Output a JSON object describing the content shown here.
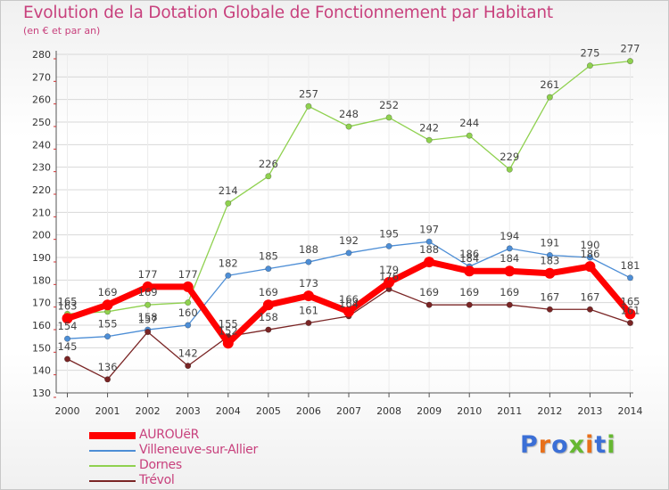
{
  "title": "Evolution de la Dotation Globale de Fonctionnement par Habitant",
  "subtitle": "(en € et par an)",
  "logo": {
    "text": "Proxiti",
    "colors": [
      "#3b6fd6",
      "#e8701a",
      "#3b6fd6",
      "#66b832",
      "#e8701a",
      "#3b6fd6",
      "#66b832"
    ]
  },
  "chart_data": {
    "type": "line",
    "x": [
      2000,
      2001,
      2002,
      2003,
      2004,
      2005,
      2006,
      2007,
      2008,
      2009,
      2010,
      2011,
      2012,
      2013,
      2014
    ],
    "x_tick_labels": [
      "2000",
      "2001",
      "2002",
      "2003",
      "2004",
      "2005",
      "2006",
      "2007",
      "2008",
      "2009",
      "2010",
      "2011",
      "2012",
      "2013",
      "2014"
    ],
    "ylim": [
      130,
      280
    ],
    "y_ticks": [
      130,
      140,
      150,
      160,
      170,
      180,
      190,
      200,
      210,
      220,
      230,
      240,
      250,
      260,
      270,
      280
    ],
    "y_tick_labels": [
      "130",
      "140",
      "150",
      "160",
      "170",
      "180",
      "190",
      "200",
      "210",
      "220",
      "230",
      "240",
      "250",
      "260",
      "270",
      "280"
    ],
    "grid": "horizontal",
    "legend_position": "bottom-left",
    "series": [
      {
        "name": "Dornes",
        "color": "#8fd14f",
        "width": "thin",
        "values": [
          165,
          166,
          169,
          170,
          214,
          226,
          257,
          248,
          252,
          242,
          244,
          229,
          261,
          275,
          277
        ],
        "labels": [
          "165",
          "",
          "169",
          "",
          "214",
          "226",
          "257",
          "248",
          "252",
          "242",
          "244",
          "229",
          "261",
          "275",
          "277"
        ]
      },
      {
        "name": "Villeneuve-sur-Allier",
        "color": "#4d8ed6",
        "width": "thin",
        "values": [
          154,
          155,
          158,
          160,
          182,
          185,
          188,
          192,
          195,
          197,
          186,
          194,
          191,
          190,
          181
        ],
        "labels": [
          "154",
          "155",
          "158",
          "160",
          "182",
          "185",
          "188",
          "192",
          "195",
          "197",
          "186",
          "194",
          "191",
          "190",
          "181"
        ]
      },
      {
        "name": "Trévol",
        "color": "#7a2525",
        "width": "thin",
        "values": [
          145,
          136,
          157,
          142,
          155,
          158,
          161,
          164,
          176,
          169,
          169,
          169,
          167,
          167,
          161
        ],
        "labels": [
          "145",
          "136",
          "157",
          "142",
          "155",
          "158",
          "161",
          "164",
          "176",
          "169",
          "169",
          "169",
          "167",
          "167",
          "161"
        ]
      },
      {
        "name": "AUROUëR",
        "color": "#ff0000",
        "width": "thick",
        "values": [
          163,
          169,
          177,
          177,
          152,
          169,
          173,
          166,
          179,
          188,
          184,
          184,
          183,
          186,
          165
        ],
        "labels": [
          "163",
          "169",
          "177",
          "177",
          "152",
          "169",
          "173",
          "166",
          "179",
          "188",
          "184",
          "184",
          "183",
          "186",
          "165"
        ]
      }
    ],
    "legend": [
      {
        "name": "AUROUëR",
        "color": "#ff0000",
        "width": "thick"
      },
      {
        "name": "Villeneuve-sur-Allier",
        "color": "#4d8ed6",
        "width": "thin"
      },
      {
        "name": "Dornes",
        "color": "#8fd14f",
        "width": "thin"
      },
      {
        "name": "Trévol",
        "color": "#7a2525",
        "width": "thin"
      }
    ]
  }
}
